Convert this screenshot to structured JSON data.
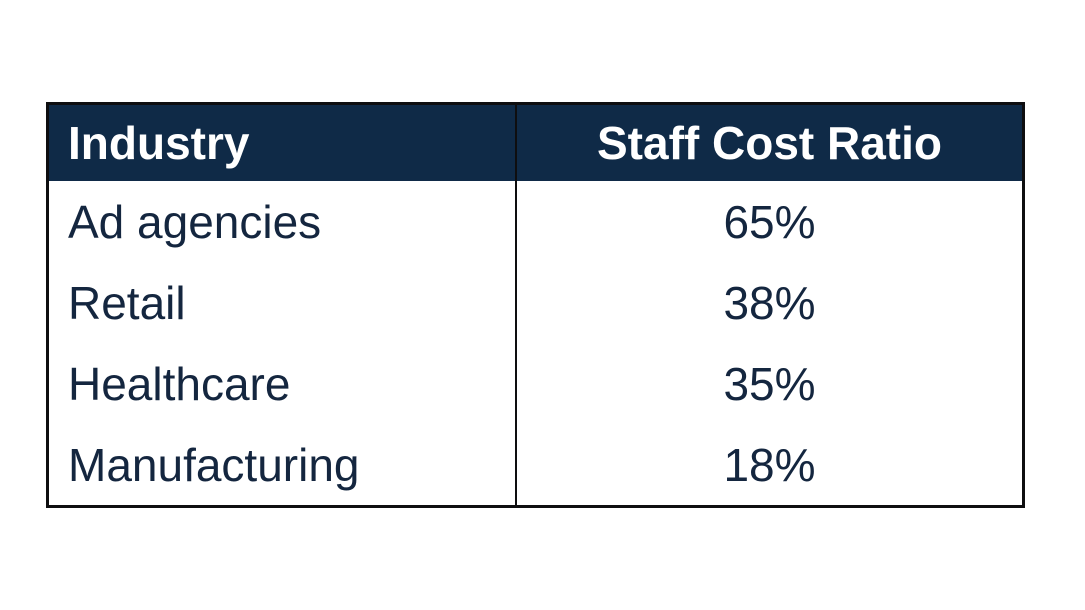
{
  "chart_data": {
    "type": "table",
    "columns": [
      "Industry",
      "Staff Cost Ratio"
    ],
    "rows": [
      {
        "industry": "Ad agencies",
        "ratio": "65%"
      },
      {
        "industry": "Retail",
        "ratio": "38%"
      },
      {
        "industry": "Healthcare",
        "ratio": "35%"
      },
      {
        "industry": "Manufacturing",
        "ratio": "18%"
      }
    ],
    "values": [
      65,
      38,
      35,
      18
    ],
    "unit": "%"
  },
  "colors": {
    "header_bg": "#0f2a47",
    "header_text": "#ffffff",
    "body_text": "#14263f",
    "border": "#0e0e10"
  }
}
